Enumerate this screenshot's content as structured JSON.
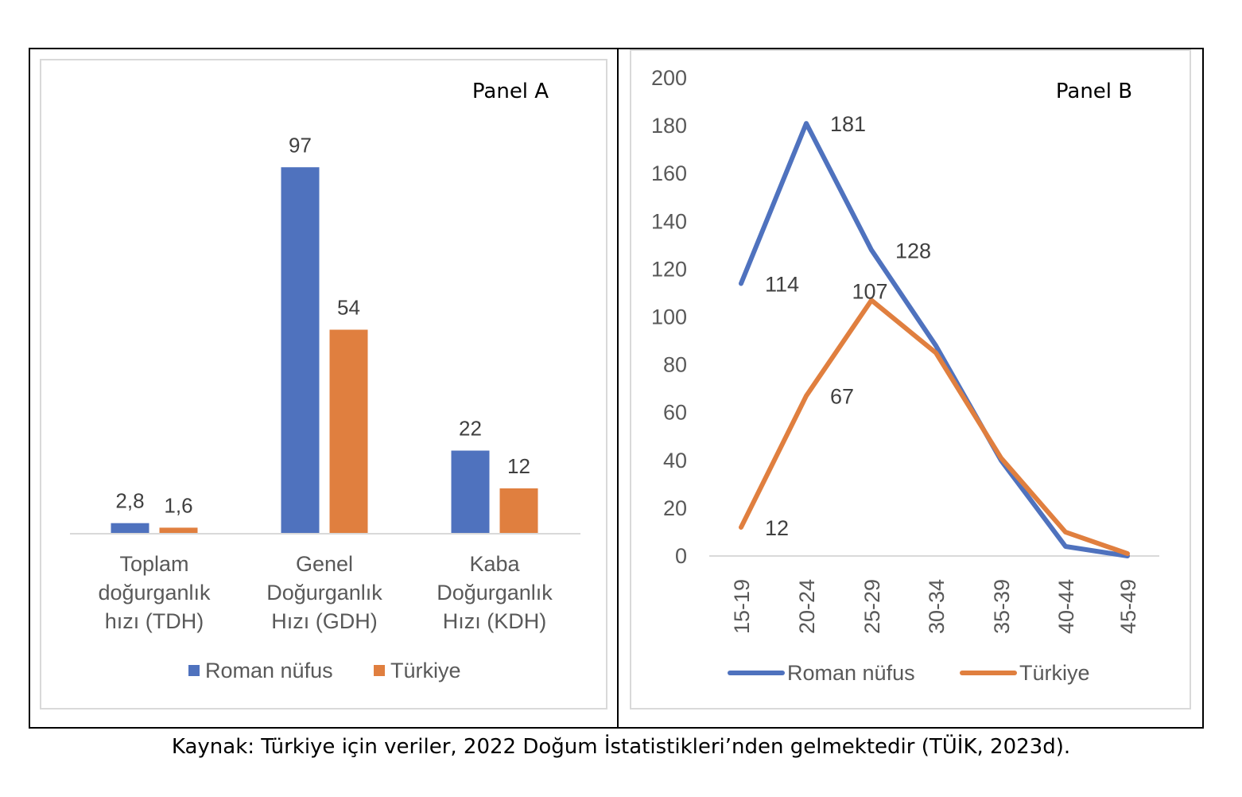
{
  "caption": "Kaynak: Türkiye için veriler, 2022 Doğum İstatistikleri’nden gelmektedir (TÜİK, 2023d).",
  "chart_data": [
    {
      "type": "bar",
      "title": "Panel A",
      "categories": [
        [
          "Toplam",
          "doğurganlık",
          "hızı (TDH)"
        ],
        [
          "Genel",
          "Doğurganlık",
          "Hızı (GDH)"
        ],
        [
          "Kaba",
          "Doğurganlık",
          "Hızı (KDH)"
        ]
      ],
      "series": [
        {
          "name": "Roman nüfus",
          "color": "#4F72BE",
          "values": [
            2.8,
            97,
            22
          ],
          "labels": [
            "2,8",
            "97",
            "22"
          ]
        },
        {
          "name": "Türkiye",
          "color": "#E07F3F",
          "values": [
            1.6,
            54,
            12
          ],
          "labels": [
            "1,6",
            "54",
            "12"
          ]
        }
      ],
      "legend": "bottom",
      "grid": false
    },
    {
      "type": "line",
      "title": "Panel B",
      "x": [
        "15-19",
        "20-24",
        "25-29",
        "30-34",
        "35-39",
        "40-44",
        "45-49"
      ],
      "series": [
        {
          "name": "Roman nüfus",
          "color": "#4F72BE",
          "values": [
            114,
            181,
            128,
            88,
            40,
            4,
            0
          ],
          "labels": [
            "114",
            "181",
            "128",
            null,
            null,
            null,
            null
          ]
        },
        {
          "name": "Türkiye",
          "color": "#E07F3F",
          "values": [
            12,
            67,
            107,
            85,
            41,
            10,
            1
          ],
          "labels": [
            "12",
            "67",
            "107",
            null,
            null,
            null,
            null
          ]
        }
      ],
      "ylim": [
        0,
        200
      ],
      "yticks": [
        0,
        20,
        40,
        60,
        80,
        100,
        120,
        140,
        160,
        180,
        200
      ],
      "legend": "bottom",
      "grid": false
    }
  ]
}
